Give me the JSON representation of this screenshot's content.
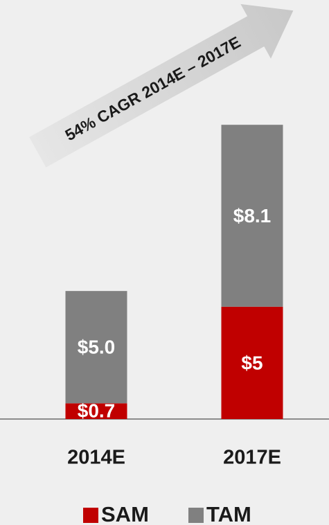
{
  "chart_data": {
    "type": "bar",
    "stacked": true,
    "annotation": "54% CAGR 2014E – 2017E",
    "categories": [
      "2014E",
      "2017E"
    ],
    "series": [
      {
        "name": "SAM",
        "color": "#c00000",
        "values": [
          0.7,
          5
        ],
        "value_labels": [
          "$0.7",
          "$5"
        ]
      },
      {
        "name": "TAM",
        "color": "#808080",
        "values": [
          5.0,
          8.1
        ],
        "value_labels": [
          "$5.0",
          "$8.1"
        ]
      }
    ],
    "ylim": [
      0,
      14
    ]
  }
}
